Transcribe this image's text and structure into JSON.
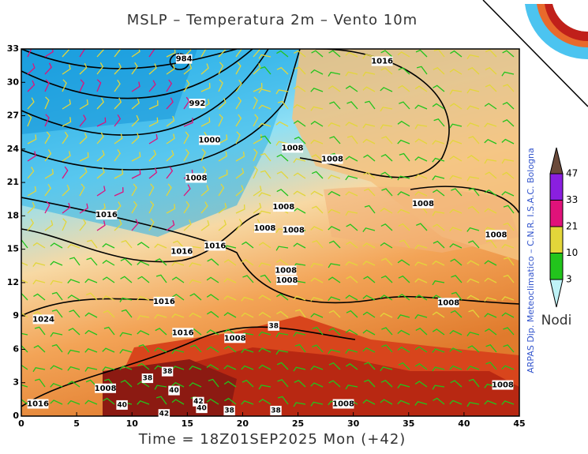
{
  "map": {
    "title": "MSLP – Temperatura 2m – Vento 10m",
    "time": "Time = 18Z01SEP2025 Mon (+42)",
    "credit": "ARPAS Dip. Meteoclimatico – C.N.R. I.S.A.C. Bologna",
    "xlim": [
      0,
      45
    ],
    "ylim": [
      0,
      33
    ],
    "xticks": [
      0,
      5,
      10,
      15,
      20,
      25,
      30,
      35,
      40,
      45
    ],
    "yticks": [
      0,
      3,
      6,
      9,
      12,
      15,
      18,
      21,
      24,
      27,
      30,
      33
    ],
    "isobar_labels": [
      {
        "x": 14.7,
        "y": 32.1,
        "label": "984"
      },
      {
        "x": 15.9,
        "y": 28.1,
        "label": "992"
      },
      {
        "x": 17.0,
        "y": 24.8,
        "label": "1000"
      },
      {
        "x": 15.8,
        "y": 21.4,
        "label": "1008"
      },
      {
        "x": 7.7,
        "y": 18.1,
        "label": "1016"
      },
      {
        "x": 14.5,
        "y": 14.8,
        "label": "1016"
      },
      {
        "x": 17.5,
        "y": 15.3,
        "label": "1016"
      },
      {
        "x": 12.9,
        "y": 10.3,
        "label": "1016"
      },
      {
        "x": 14.6,
        "y": 7.5,
        "label": "1016"
      },
      {
        "x": 2.0,
        "y": 8.7,
        "label": "1024"
      },
      {
        "x": 19.3,
        "y": 7.0,
        "label": "1008"
      },
      {
        "x": 7.6,
        "y": 2.5,
        "label": "1008"
      },
      {
        "x": 1.5,
        "y": 1.1,
        "label": "1016"
      },
      {
        "x": 32.6,
        "y": 31.9,
        "label": "1016"
      },
      {
        "x": 24.5,
        "y": 24.1,
        "label": "1008"
      },
      {
        "x": 28.1,
        "y": 23.1,
        "label": "1008"
      },
      {
        "x": 23.7,
        "y": 18.8,
        "label": "1008"
      },
      {
        "x": 22.0,
        "y": 16.9,
        "label": "1008"
      },
      {
        "x": 24.6,
        "y": 16.7,
        "label": "1008"
      },
      {
        "x": 23.9,
        "y": 13.1,
        "label": "1008"
      },
      {
        "x": 24.0,
        "y": 12.2,
        "label": "1008"
      },
      {
        "x": 36.3,
        "y": 19.1,
        "label": "1008"
      },
      {
        "x": 42.9,
        "y": 16.3,
        "label": "1008"
      },
      {
        "x": 38.6,
        "y": 10.2,
        "label": "1008"
      },
      {
        "x": 43.5,
        "y": 2.8,
        "label": "1008"
      },
      {
        "x": 29.1,
        "y": 1.1,
        "label": "1008"
      }
    ],
    "temperature_labels": [
      {
        "x": 13.2,
        "y": 4.0,
        "label": "38"
      },
      {
        "x": 11.4,
        "y": 3.4,
        "label": "38"
      },
      {
        "x": 13.8,
        "y": 2.3,
        "label": "40"
      },
      {
        "x": 12.9,
        "y": 0.2,
        "label": "42"
      },
      {
        "x": 16.0,
        "y": 1.3,
        "label": "42"
      },
      {
        "x": 16.3,
        "y": 0.7,
        "label": "40"
      },
      {
        "x": 9.1,
        "y": 1.0,
        "label": "40"
      },
      {
        "x": 18.8,
        "y": 0.5,
        "label": "38"
      },
      {
        "x": 23.0,
        "y": 0.5,
        "label": "38"
      },
      {
        "x": 22.8,
        "y": 8.1,
        "label": "38"
      }
    ],
    "wind_legend": {
      "unit": "Nodi",
      "ticks": [
        47,
        33,
        21,
        10,
        3
      ],
      "colors": [
        "#6b4a3a",
        "#8a1fe0",
        "#e0127a",
        "#e3d63a",
        "#22c41c",
        "#bff3f7"
      ]
    }
  }
}
